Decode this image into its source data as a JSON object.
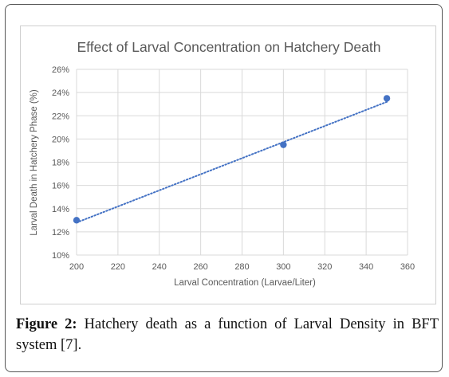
{
  "caption": {
    "label": "Figure 2:",
    "text": "Hatchery death as a function of Larval Density in BFT system [7]."
  },
  "colors": {
    "point": "#4472c4",
    "trendline": "#4472c4",
    "grid": "#d9d9d9",
    "text": "#595959"
  },
  "chart_data": {
    "type": "scatter",
    "title": "Effect of Larval Concentration on Hatchery Death",
    "xlabel": "Larval Concentration (Larvae/Liter)",
    "ylabel": "Larval Death in Hatchery Phase (%)",
    "xlim": [
      200,
      360
    ],
    "ylim": [
      10,
      26
    ],
    "x_ticks": [
      200,
      220,
      240,
      260,
      280,
      300,
      320,
      340,
      360
    ],
    "y_ticks": [
      10,
      12,
      14,
      16,
      18,
      20,
      22,
      24,
      26
    ],
    "y_tick_format": "percent",
    "grid": true,
    "legend": false,
    "trendline": {
      "type": "linear",
      "style": "dotted",
      "from": [
        200,
        12.8
      ],
      "to": [
        350,
        23.2
      ]
    },
    "points": [
      {
        "x": 200,
        "y": 13.0
      },
      {
        "x": 300,
        "y": 19.5
      },
      {
        "x": 350,
        "y": 23.5
      }
    ]
  }
}
